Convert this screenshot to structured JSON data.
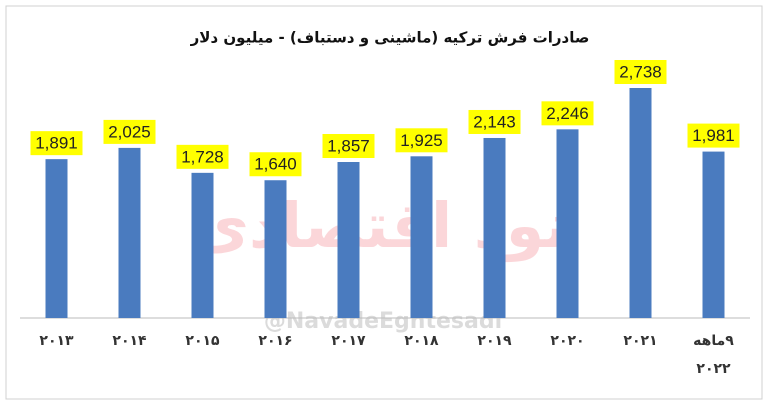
{
  "chart_data": {
    "type": "bar",
    "title": "صادرات فرش ترکیه (ماشینی و دستباف) - میلیون دلار",
    "categories": [
      "۲۰۱۳",
      "۲۰۱۴",
      "۲۰۱۵",
      "۲۰۱۶",
      "۲۰۱۷",
      "۲۰۱۸",
      "۲۰۱۹",
      "۲۰۲۰",
      "۲۰۲۱",
      "۹ماهه ۲۰۲۲"
    ],
    "values": [
      1891,
      2025,
      1728,
      1640,
      1857,
      1925,
      2143,
      2246,
      2738,
      1981
    ],
    "value_labels": [
      "1,891",
      "2,025",
      "1,728",
      "1,640",
      "1,857",
      "1,925",
      "2,143",
      "2,246",
      "2,738",
      "1,981"
    ],
    "color": "#4a7bbf",
    "label_background": "#ffff00"
  },
  "watermark": {
    "text": "نود اقتصادی",
    "handle": "@NavadeEghtesadi"
  }
}
